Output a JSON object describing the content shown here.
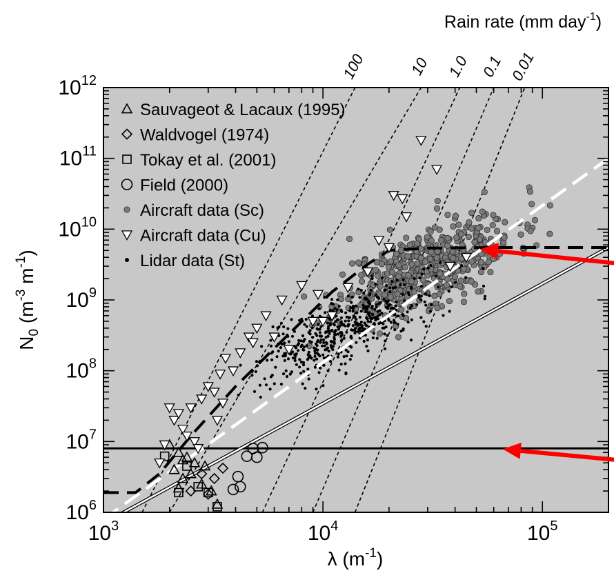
{
  "chart_data": {
    "type": "scatter",
    "x_scale": "log",
    "y_scale": "log",
    "xlim": [
      1000,
      200000
    ],
    "ylim": [
      1000000,
      1000000000000
    ],
    "plot_background": "#c8c8c8",
    "grid": false,
    "legend_position": "top-left",
    "xlabel": {
      "base": "λ (m",
      "sup": "-1",
      "end": ")"
    },
    "ylabel": {
      "base": "N",
      "sub": "0",
      "mid": " (m",
      "sup1": "-3",
      "mid2": " m",
      "sup2": "-1",
      "end": ")"
    },
    "top_axis_title": {
      "base": "Rain rate (mm day",
      "sup": "-1",
      "end": ")"
    },
    "x_ticks": [
      {
        "value": 1000,
        "base": "10",
        "exp": "3"
      },
      {
        "value": 10000,
        "base": "10",
        "exp": "4"
      },
      {
        "value": 100000,
        "base": "10",
        "exp": "5"
      }
    ],
    "y_ticks": [
      {
        "value": 1000000,
        "base": "10",
        "exp": "6"
      },
      {
        "value": 10000000,
        "base": "10",
        "exp": "7"
      },
      {
        "value": 100000000,
        "base": "10",
        "exp": "8"
      },
      {
        "value": 1000000000,
        "base": "10",
        "exp": "9"
      },
      {
        "value": 10000000000,
        "base": "10",
        "exp": "10"
      },
      {
        "value": 100000000000,
        "base": "10",
        "exp": "11"
      },
      {
        "value": 1000000000000,
        "base": "10",
        "exp": "12"
      }
    ],
    "rain_rate_lines": [
      {
        "label": "100",
        "points": [
          [
            1500,
            1000000
          ],
          [
            14000,
            1000000000000
          ]
        ]
      },
      {
        "label": "10",
        "points": [
          [
            2000,
            1000000
          ],
          [
            28000,
            1000000000000
          ]
        ]
      },
      {
        "label": "1.0",
        "points": [
          [
            5300,
            1000000
          ],
          [
            42000,
            1000000000000
          ]
        ]
      },
      {
        "label": "0.1",
        "points": [
          [
            9000,
            1000000
          ],
          [
            60000,
            1000000000000
          ]
        ]
      },
      {
        "label": "0.01",
        "points": [
          [
            14000,
            1000000
          ],
          [
            83000,
            1000000000000
          ]
        ]
      }
    ],
    "fit_lines": [
      {
        "style": "black-solid",
        "points": [
          [
            1000,
            8000000
          ],
          [
            200000,
            8000000
          ]
        ]
      },
      {
        "style": "white-solid",
        "points": [
          [
            1000,
            700000
          ],
          [
            200000,
            5500000000
          ]
        ]
      },
      {
        "style": "black-dash",
        "points": [
          [
            1000,
            1900000
          ],
          [
            1400,
            1900000
          ],
          [
            1800,
            3500000
          ],
          [
            2500,
            12000000
          ],
          [
            4000,
            60000000
          ],
          [
            7000,
            330000000
          ],
          [
            11000,
            1300000000
          ],
          [
            16000,
            3200000000
          ],
          [
            20000,
            5000000000
          ],
          [
            30000,
            5400000000
          ],
          [
            60000,
            5500000000
          ],
          [
            200000,
            5500000000
          ]
        ]
      },
      {
        "style": "white-dash",
        "points": [
          [
            1000,
            800000
          ],
          [
            200000,
            100000000000
          ]
        ]
      }
    ],
    "arrows": [
      {
        "from": [
          290000,
          3000000000
        ],
        "to": [
          52000,
          5200000000
        ]
      },
      {
        "from": [
          300000,
          5000000
        ],
        "to": [
          66000,
          7800000
        ]
      }
    ],
    "series": [
      {
        "name": "Sauvageot & Lacaux (1995)",
        "marker": "triangle-up",
        "points": [
          [
            2200,
            7000000
          ],
          [
            2100,
            4000000
          ],
          [
            2300,
            3000000
          ],
          [
            2600,
            5000000
          ],
          [
            2800,
            2500000
          ],
          [
            2400,
            6000000
          ],
          [
            2000,
            9000000
          ],
          [
            2900,
            4500000
          ],
          [
            3100,
            2000000
          ],
          [
            3300,
            1300000
          ],
          [
            2200,
            2200000
          ],
          [
            2500,
            3500000
          ],
          [
            2300,
            5500000
          ]
        ]
      },
      {
        "name": "Waldvogel (1974)",
        "marker": "diamond",
        "points": [
          [
            2800,
            3500000
          ],
          [
            3200,
            3000000
          ],
          [
            3500,
            4200000
          ],
          [
            2500,
            2000000
          ],
          [
            3000,
            1800000
          ]
        ]
      },
      {
        "name": "Tokay et al. (2001)",
        "marker": "square",
        "points": [
          [
            1900,
            6200000
          ],
          [
            2200,
            1900000
          ],
          [
            2700,
            2300000
          ],
          [
            3000,
            1900000
          ],
          [
            3300,
            1200000
          ],
          [
            2400,
            4500000
          ]
        ]
      },
      {
        "name": "Field (2000)",
        "marker": "circle",
        "points": [
          [
            4800,
            8000000
          ],
          [
            5300,
            8200000
          ],
          [
            5000,
            6000000
          ],
          [
            4500,
            6200000
          ],
          [
            4100,
            3200000
          ],
          [
            4200,
            2300000
          ],
          [
            3900,
            2100000
          ]
        ]
      },
      {
        "name": "Aircraft data (Sc)",
        "marker": "circle-gray",
        "cluster": {
          "center": [
            30000,
            3000000000
          ],
          "spread": [
            0.2,
            0.28
          ],
          "count": 520,
          "seed": 11,
          "slope": 1.2
        }
      },
      {
        "name": "Aircraft data (Cu)",
        "marker": "triangle-down",
        "points": [
          [
            1800,
            5000000
          ],
          [
            1900,
            9000000
          ],
          [
            2100,
            20000000
          ],
          [
            2300,
            15000000
          ],
          [
            2500,
            30000000
          ],
          [
            2600,
            10000000
          ],
          [
            2000,
            30000000
          ],
          [
            2200,
            25000000
          ],
          [
            2800,
            40000000
          ],
          [
            3000,
            60000000
          ],
          [
            3200,
            50000000
          ],
          [
            3400,
            90000000
          ],
          [
            3600,
            150000000
          ],
          [
            3900,
            100000000
          ],
          [
            4200,
            180000000
          ],
          [
            4600,
            300000000
          ],
          [
            4800,
            250000000
          ],
          [
            5000,
            400000000
          ],
          [
            5500,
            600000000
          ],
          [
            6000,
            300000000
          ],
          [
            6500,
            1000000000
          ],
          [
            7000,
            200000000
          ],
          [
            8000,
            1600000000
          ],
          [
            9000,
            500000000
          ],
          [
            9500,
            1200000000
          ],
          [
            10000,
            500000000
          ],
          [
            11000,
            600000000
          ],
          [
            13000,
            1500000000
          ],
          [
            16000,
            2500000000
          ],
          [
            18000,
            7000000000
          ],
          [
            20000,
            5500000000
          ],
          [
            21000,
            30000000000
          ],
          [
            23000,
            27000000000
          ],
          [
            24000,
            15000000000
          ],
          [
            28000,
            180000000000
          ],
          [
            33000,
            70000000000
          ],
          [
            38000,
            3000000000
          ],
          [
            45000,
            4000000000
          ],
          [
            2700,
            8000000
          ],
          [
            2400,
            12000000
          ],
          [
            3300,
            20000000
          ],
          [
            3500,
            35000000
          ]
        ]
      },
      {
        "name": "Lidar data (St)",
        "marker": "dot",
        "cluster": {
          "center": [
            13000,
            400000000
          ],
          "spread": [
            0.2,
            0.24
          ],
          "count": 520,
          "seed": 7,
          "slope": 1.25
        }
      }
    ]
  }
}
